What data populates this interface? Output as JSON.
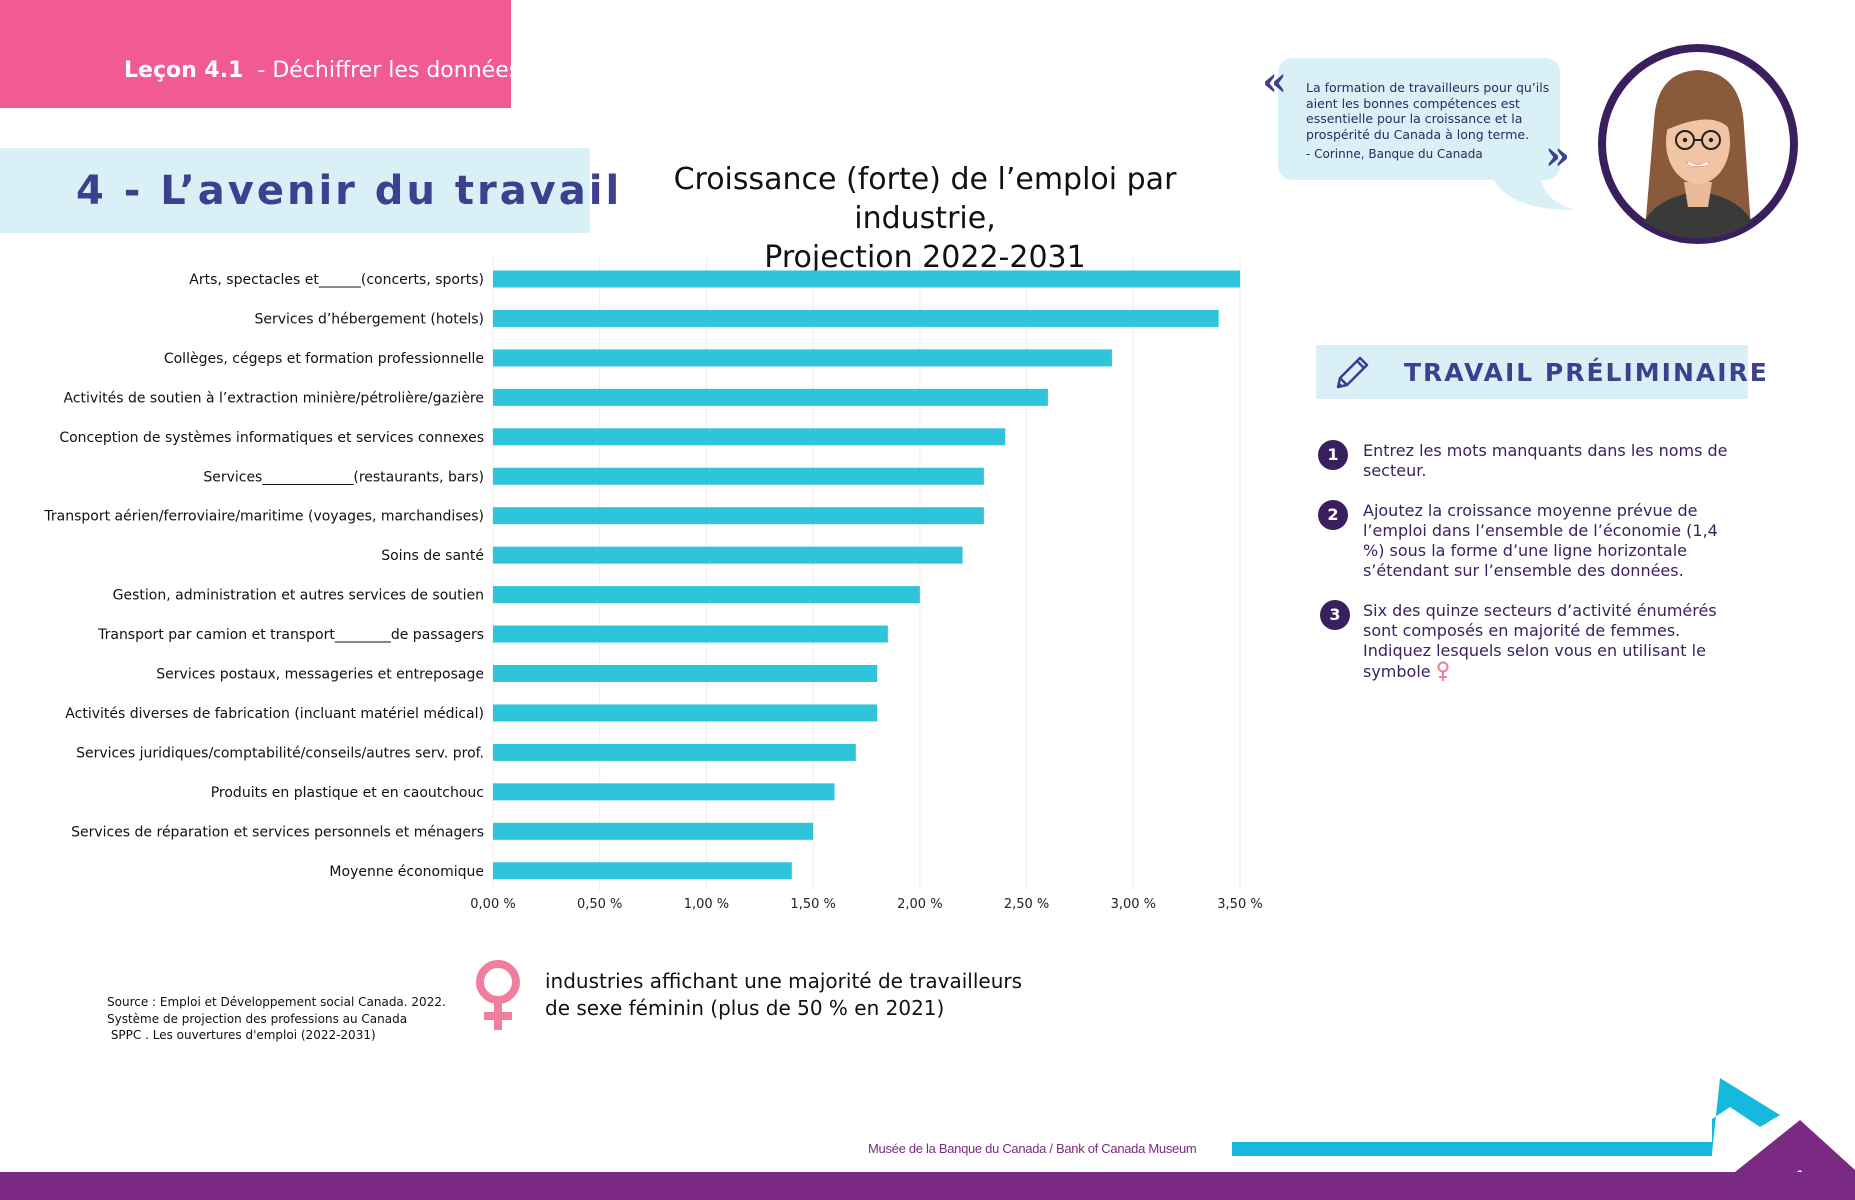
{
  "lesson": {
    "number": "Leçon 4.1",
    "title": "- Déchiffrer les données"
  },
  "section_title": "4 - L’avenir du travail",
  "chart_title_line1": "Croissance (forte) de l’emploi par industrie,",
  "chart_title_line2": "Projection 2022-2031",
  "quote": {
    "text": "La formation de travailleurs pour qu’ils aient les bonnes compétences est essentielle pour la croissance et la prospérité du Canada à long terme.",
    "author": "-      Corinne, Banque du Canada",
    "open_mark": "«",
    "close_mark": "»"
  },
  "prelim": {
    "title": "TRAVAIL PRÉLIMINAIRE",
    "steps": [
      {
        "num": "1",
        "text": "Entrez les mots manquants dans les noms de secteur."
      },
      {
        "num": "2",
        "text": "Ajoutez la croissance moyenne prévue de l’emploi dans l’ensemble de l’économie (1,4 %) sous la forme d’une ligne horizontale s’étendant sur l’ensemble des données."
      },
      {
        "num": "3",
        "text": "Six des quinze secteurs d’activité énumérés sont composés en majorité de femmes. Indiquez lesquels selon vous en utilisant le symbole"
      }
    ]
  },
  "source": {
    "line1": "Source : Emploi et Développement social Canada. 2022.",
    "line2": "Système de projection des professions au Canada",
    "line3": " SPPC . Les ouvertures d'emploi (2022-2031)"
  },
  "legend": {
    "line1": "industries affichant une majorité de travailleurs",
    "line2": "de sexe féminin (plus de 50 % en 2021)"
  },
  "footer": {
    "text": "Musée de la Banque du Canada  /  Bank of Canada Museum"
  },
  "colors": {
    "bar": "#2ec4d9",
    "pink": "#f15a93",
    "purple": "#7a2a82",
    "navy": "#3d3f8f",
    "light_blue": "#daf0f7",
    "venus": "#f07f9f"
  },
  "icons": {
    "pencil": "pencil-icon",
    "female": "female-symbol-icon",
    "portrait": "portrait-illustration"
  },
  "chart_data": {
    "type": "bar",
    "orientation": "horizontal",
    "title": "Croissance (forte) de l’emploi par industrie, Projection 2022-2031",
    "categories": [
      {
        "pre": "Arts, spectacles et",
        "blank": true,
        "post": "(concerts, sports)"
      },
      {
        "pre": "Services d’hébergement (hotels)",
        "blank": false,
        "post": ""
      },
      {
        "pre": "Collèges, cégeps et formation professionnelle",
        "blank": false,
        "post": ""
      },
      {
        "pre": "Activités de soutien à l’extraction minière/pétrolière/gazière",
        "blank": false,
        "post": ""
      },
      {
        "pre": "Conception de systèmes informatiques et services connexes",
        "blank": false,
        "post": ""
      },
      {
        "pre": "Services",
        "blank": true,
        "post": "(restaurants, bars)"
      },
      {
        "pre": "Transport aérien/ferroviaire/maritime (voyages, marchandises)",
        "blank": false,
        "post": ""
      },
      {
        "pre": "Soins de santé",
        "blank": false,
        "post": ""
      },
      {
        "pre": "Gestion, administration et autres services de soutien",
        "blank": false,
        "post": ""
      },
      {
        "pre": "Transport par camion et transport",
        "blank": true,
        "post": "de passagers"
      },
      {
        "pre": "Services postaux, messageries et entreposage",
        "blank": false,
        "post": ""
      },
      {
        "pre": "Activités diverses de fabrication (incluant matériel médical)",
        "blank": false,
        "post": ""
      },
      {
        "pre": "Services juridiques/comptabilité/conseils/autres serv. prof.",
        "blank": false,
        "post": ""
      },
      {
        "pre": "Produits en plastique et en caoutchouc",
        "blank": false,
        "post": ""
      },
      {
        "pre": "Services de réparation et services personnels et ménagers",
        "blank": false,
        "post": ""
      },
      {
        "pre": "Moyenne économique",
        "blank": false,
        "post": ""
      }
    ],
    "values": [
      3.5,
      3.4,
      2.9,
      2.6,
      2.4,
      2.3,
      2.3,
      2.2,
      2.0,
      1.85,
      1.8,
      1.8,
      1.7,
      1.6,
      1.5,
      1.4
    ],
    "unit": "%",
    "xlim": [
      0,
      3.5
    ],
    "ticks": [
      0,
      0.5,
      1.0,
      1.5,
      2.0,
      2.5,
      3.0,
      3.5
    ],
    "tick_labels": [
      "0,00 %",
      "0,50 %",
      "1,00 %",
      "1,50 %",
      "2,00 %",
      "2,50 %",
      "3,00 %",
      "3,50 %"
    ],
    "grid": "vertical",
    "xlabel": "",
    "ylabel": ""
  }
}
